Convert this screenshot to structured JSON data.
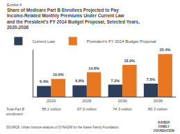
{
  "chart_data": {
    "type": "bar",
    "subtitle": "Exhibit 4",
    "title": "Share of Medicare Part B Enrollees Projected to Pay\nIncome-Related Monthly Premiums Under Current Law\nand the President’s FY 2014 Budget Proposal, Selected Years,\n2020-2036",
    "categories": [
      "2020",
      "2025",
      "2030",
      "2036"
    ],
    "series": [
      {
        "name": "Current Law",
        "color": "#2e3f5c",
        "values": [
          6.4,
          6.8,
          7.2,
          7.8
        ],
        "value_labels": [
          "6.4%",
          "6.8%",
          "7.2%",
          "7.8%"
        ]
      },
      {
        "name": "President’s FY 2014 Budget Proposal",
        "color": "#e87722",
        "values": [
          10.6,
          14.6,
          18.9,
          25.4
        ],
        "value_labels": [
          "10.6%",
          "14.6%",
          "18.9%",
          "25.4%"
        ]
      }
    ],
    "ylim": [
      0,
      28
    ],
    "grid": false,
    "legend": "top",
    "data_labels": true,
    "tick_labels": "x",
    "xlabel": "Total Part B\nenrollment:",
    "annotations": [
      {
        "text": "58.1 million",
        "category": "2020"
      },
      {
        "text": "67.0 million",
        "category": "2025"
      },
      {
        "text": "74.3 million",
        "category": "2030"
      },
      {
        "text": "80.3 million",
        "category": "2036"
      },
      {
        "text": "KAISER\nFAMILY\nFOUNDATION"
      }
    ],
    "source": "SOURCE: Urban Institute analysis of DYNASIM for the Kaiser Family Foundation."
  }
}
